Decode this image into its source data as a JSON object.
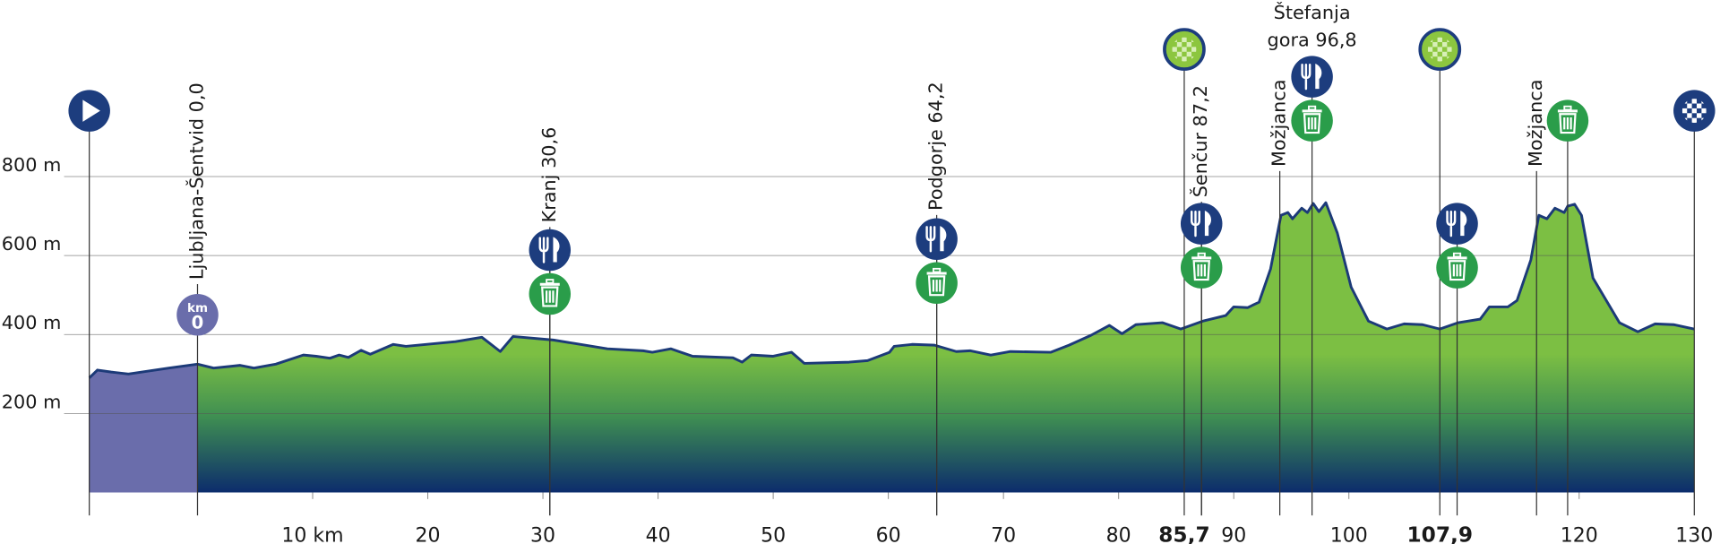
{
  "chart_data": {
    "type": "area",
    "x": [
      -9.4,
      -8.7,
      -7.5,
      -6,
      -2.5,
      0,
      1.4,
      3.7,
      4.9,
      6.8,
      9.2,
      10.3,
      11.5,
      12.3,
      13.1,
      14.2,
      15,
      17,
      18.1,
      22.4,
      24.7,
      26.3,
      27.4,
      30.9,
      35.6,
      38.7,
      39.5,
      41.1,
      43,
      46.5,
      47.3,
      48.1,
      50,
      51.6,
      52.7,
      56.6,
      58.2,
      60.1,
      60.5,
      62.1,
      64,
      65.9,
      67.1,
      68.9,
      70.6,
      74.1,
      75.7,
      77.6,
      79.2,
      80.3,
      81.5,
      83.8,
      85.4,
      87.3,
      89.3,
      90,
      91.2,
      92.2,
      93.2,
      94.1,
      94.7,
      95.1,
      95.9,
      96.4,
      96.9,
      97.4,
      98,
      99,
      100.2,
      101.7,
      103.3,
      104.8,
      106.4,
      107.9,
      109.5,
      111.4,
      112.2,
      113.8,
      114.6,
      115.8,
      116.5,
      117.2,
      117.9,
      118.7,
      119,
      119.6,
      120.2,
      121.2,
      123.5,
      125.1,
      126.6,
      128.2,
      130
    ],
    "values": [
      290,
      310,
      305,
      300,
      315,
      325,
      315,
      322,
      315,
      325,
      348,
      345,
      340,
      348,
      342,
      360,
      350,
      375,
      370,
      382,
      393,
      357,
      395,
      386,
      364,
      359,
      355,
      364,
      345,
      341,
      330,
      348,
      345,
      355,
      327,
      330,
      334,
      355,
      370,
      375,
      373,
      357,
      359,
      348,
      357,
      355,
      373,
      398,
      423,
      402,
      425,
      430,
      414,
      434,
      448,
      470,
      468,
      482,
      566,
      702,
      709,
      693,
      720,
      709,
      732,
      711,
      734,
      657,
      520,
      434,
      414,
      427,
      425,
      414,
      430,
      439,
      470,
      470,
      486,
      589,
      702,
      693,
      720,
      709,
      725,
      730,
      702,
      543,
      430,
      407,
      427,
      425,
      414
    ],
    "color": "#7cbf43",
    "bottom_color": "#0c2c6c",
    "neutral_color": "#6a6dab",
    "line_color": "#1c3a78",
    "xlim": [
      -9.4,
      130
    ],
    "ylim": [
      0,
      800
    ],
    "xticks": [
      {
        "value": 10,
        "label": "10 km"
      },
      20,
      30,
      40,
      50,
      60,
      70,
      80,
      {
        "value": 85.7,
        "label": "85,7"
      },
      90,
      100,
      {
        "value": 107.9,
        "label": "107,9"
      },
      120,
      130
    ],
    "yticks": [
      {
        "value": 200,
        "label": "200 m"
      },
      {
        "value": 400,
        "label": "400 m"
      },
      {
        "value": 600,
        "label": "600 m"
      },
      {
        "value": 800,
        "label": "800 m"
      }
    ],
    "grid": true,
    "start": -9.4,
    "finish": 130,
    "km_marker": {
      "x": 0,
      "unit": "km",
      "label": "0"
    },
    "sprints": [
      85.7,
      107.9
    ],
    "places": [
      {
        "name": "Ljubljana-Šentvid 0,0",
        "x": 0
      },
      {
        "name": "Kranj 30,6",
        "x": 30.6
      },
      {
        "name": "Podgorje 64,2",
        "x": 64.2
      },
      {
        "name": "Šenčur 87,2",
        "x": 87.2
      },
      {
        "name": "Možjanca",
        "x": 94
      },
      {
        "name": "Možjanca",
        "x": 116.3
      }
    ],
    "summit": {
      "name_lines": [
        "Štefanja",
        "gora 96,8"
      ],
      "x": 96.8
    },
    "feed_zones": [
      {
        "x": 30.6,
        "icons": [
          "food",
          "waste"
        ]
      },
      {
        "x": 64.2,
        "icons": [
          "food",
          "waste"
        ]
      },
      {
        "x": 87.2,
        "icons": [
          "food",
          "waste"
        ]
      },
      {
        "x": 96.8,
        "icons": [
          "food",
          "waste"
        ]
      },
      {
        "x": 109.4,
        "icons": [
          "food",
          "waste"
        ]
      },
      {
        "x": 119,
        "icons": [
          "waste"
        ]
      }
    ]
  }
}
